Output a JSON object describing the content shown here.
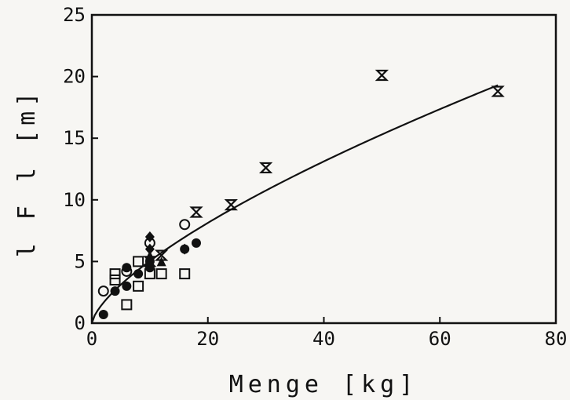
{
  "chart_data": {
    "type": "scatter",
    "title": "",
    "xlabel": "Menge [kg]",
    "ylabel": "l F l  [m]",
    "xlim": [
      0,
      80
    ],
    "ylim": [
      0,
      25
    ],
    "xticks": [
      "0",
      "20",
      "40",
      "60",
      "80"
    ],
    "yticks": [
      "0",
      "5",
      "10",
      "15",
      "20",
      "25"
    ],
    "grid": false,
    "legend": "none",
    "series": [
      {
        "marker": "hourglass",
        "points": [
          [
            10,
            5
          ],
          [
            12,
            5.5
          ],
          [
            18,
            9
          ],
          [
            24,
            9.6
          ],
          [
            30,
            12.6
          ],
          [
            50,
            20.1
          ],
          [
            70,
            18.8
          ]
        ]
      },
      {
        "marker": "square-open",
        "points": [
          [
            4,
            3.5
          ],
          [
            4,
            4
          ],
          [
            6,
            1.5
          ],
          [
            8,
            3
          ],
          [
            10,
            4
          ],
          [
            12,
            4
          ],
          [
            16,
            4
          ],
          [
            8,
            5
          ]
        ]
      },
      {
        "marker": "circle-filled",
        "points": [
          [
            2,
            0.7
          ],
          [
            4,
            2.6
          ],
          [
            6,
            3
          ],
          [
            6,
            4.5
          ],
          [
            8,
            4
          ],
          [
            10,
            4.5
          ],
          [
            10,
            5
          ],
          [
            16,
            6
          ],
          [
            18,
            6.5
          ]
        ]
      },
      {
        "marker": "diamond-filled",
        "points": [
          [
            10,
            7
          ],
          [
            10,
            6
          ],
          [
            16,
            6
          ]
        ]
      },
      {
        "marker": "circle-open",
        "points": [
          [
            2,
            2.6
          ],
          [
            10,
            6.5
          ],
          [
            16,
            8
          ],
          [
            6,
            4.2
          ]
        ]
      },
      {
        "marker": "triangle-filled",
        "points": [
          [
            10,
            5.5
          ],
          [
            12,
            5
          ]
        ]
      }
    ],
    "fit_curve": {
      "a": 1.029,
      "b": 0.69,
      "x_range": [
        0,
        70
      ]
    }
  },
  "colors": {
    "ink": "#111111",
    "background": "#f7f6f3"
  }
}
